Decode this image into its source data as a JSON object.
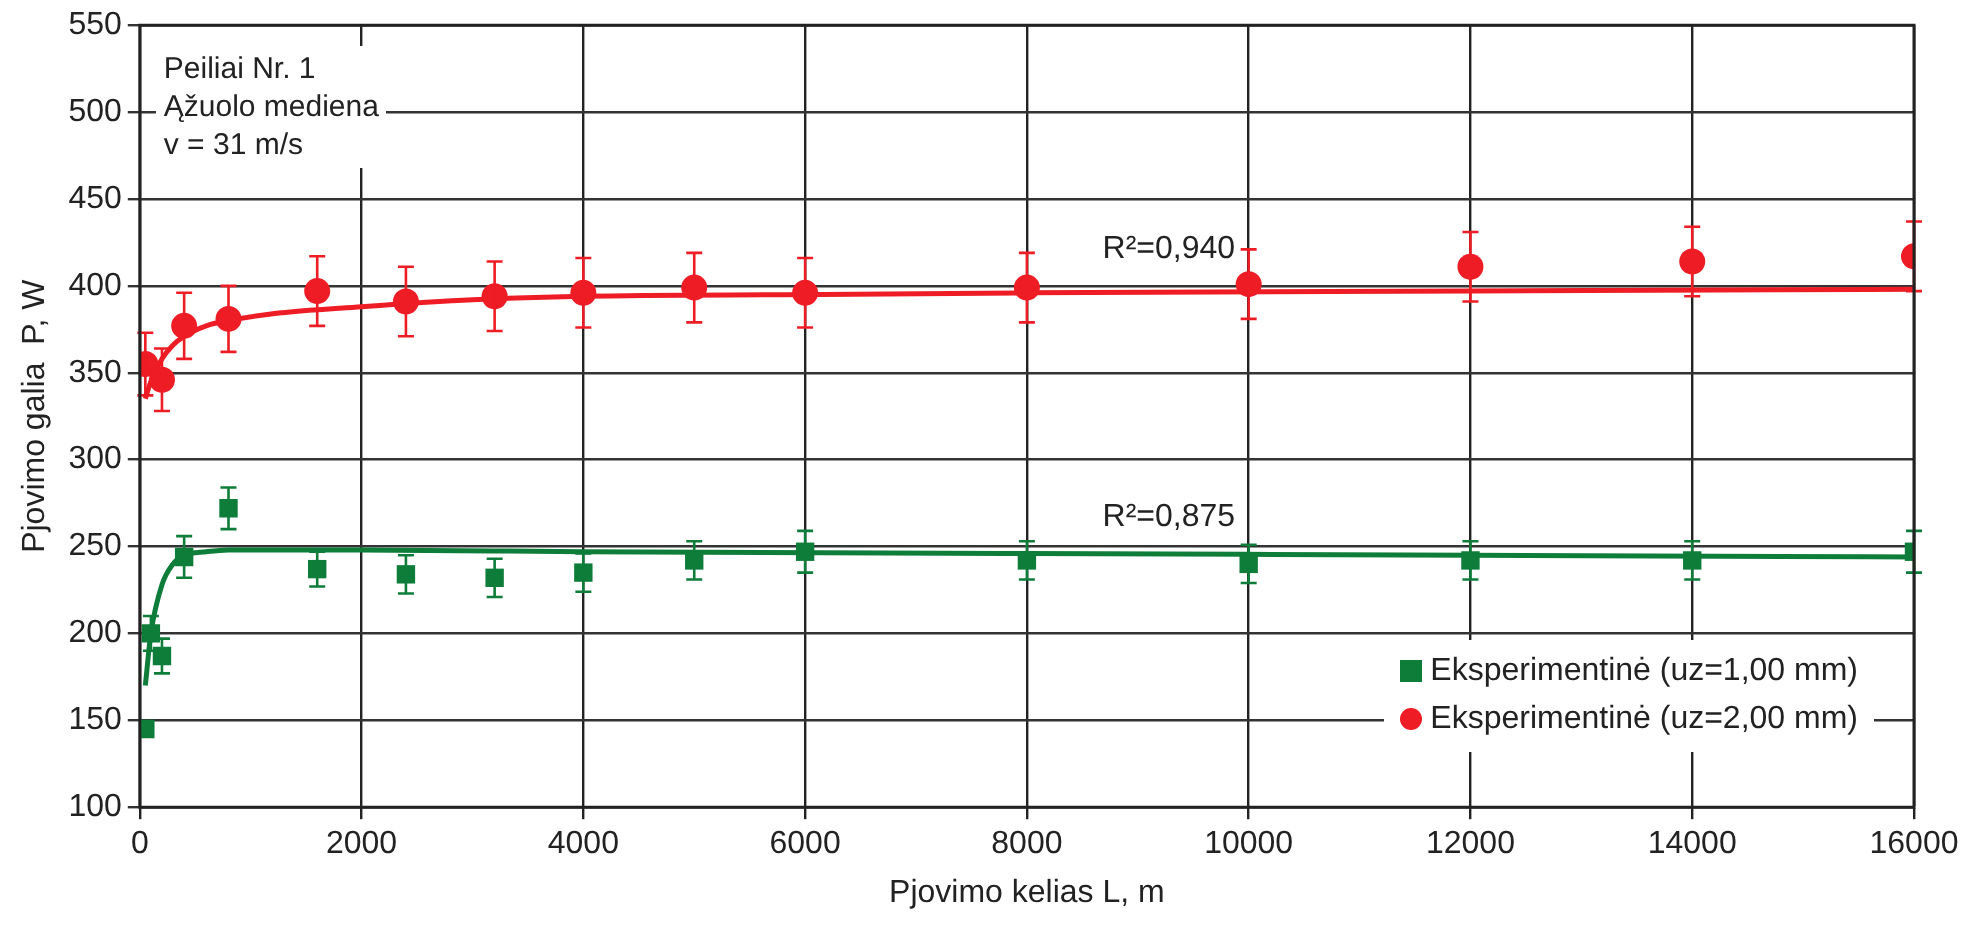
{
  "chart_data": {
    "type": "scatter",
    "xlabel": "Pjovimo kelias L, m",
    "ylabel": "Pjovimo galia  P, W",
    "xlim": [
      0,
      16000
    ],
    "xticks": [
      0,
      2000,
      4000,
      6000,
      8000,
      10000,
      12000,
      14000,
      16000
    ],
    "ylim": [
      100,
      550
    ],
    "yticks": [
      100,
      150,
      200,
      250,
      300,
      350,
      400,
      450,
      500,
      550
    ],
    "grid": true,
    "legend": "bottom right",
    "annotations": [
      "Peiliai Nr. 1\nĄžuolo mediena\nv = 31 m/s",
      "R²=0,940",
      "R²=0,875"
    ],
    "series": [
      {
        "type": "scatter",
        "name": "Eksperimentinė (uz=1,00 mm)",
        "color": "#0e7d3a",
        "marker": "square",
        "x": [
          50,
          100,
          200,
          400,
          800,
          1600,
          2400,
          3200,
          4000,
          5000,
          6000,
          8000,
          10000,
          12000,
          14000,
          16000
        ],
        "values": [
          145,
          200,
          187,
          244,
          272,
          237,
          234,
          232,
          235,
          242,
          247,
          242,
          240,
          242,
          242,
          247
        ],
        "errors": [
          null,
          10,
          10,
          12,
          12,
          10,
          11,
          11,
          11,
          11,
          12,
          11,
          11,
          11,
          11,
          12
        ]
      },
      {
        "type": "scatter",
        "name": "Eksperimentinė (uz=2,00 mm)",
        "color": "#ee1c25",
        "marker": "circle",
        "x": [
          50,
          200,
          400,
          800,
          1600,
          2400,
          3200,
          4000,
          5000,
          6000,
          8000,
          10000,
          12000,
          14000,
          16000
        ],
        "values": [
          355,
          346,
          377,
          381,
          397,
          391,
          394,
          396,
          399,
          396,
          399,
          401,
          411,
          414,
          417
        ],
        "errors": [
          18,
          18,
          19,
          19,
          20,
          20,
          20,
          20,
          20,
          20,
          20,
          20,
          20,
          20,
          20
        ]
      },
      {
        "type": "line",
        "color": "#0e7d3a",
        "marker": "none",
        "x": [
          50,
          100,
          200,
          300,
          400,
          600,
          800,
          1200,
          2000,
          4000,
          8000,
          12000,
          16000
        ],
        "values": [
          170,
          200,
          228,
          240,
          245,
          247,
          248,
          248,
          248,
          247,
          246,
          245,
          244
        ]
      },
      {
        "type": "line",
        "color": "#ee1c25",
        "marker": "none",
        "x": [
          50,
          100,
          200,
          300,
          400,
          600,
          800,
          1200,
          2000,
          3000,
          4000,
          6000,
          8000,
          12000,
          16000
        ],
        "values": [
          335,
          345,
          358,
          366,
          371,
          377,
          380,
          384,
          388,
          392,
          394,
          395,
          396,
          397,
          398
        ]
      }
    ]
  }
}
